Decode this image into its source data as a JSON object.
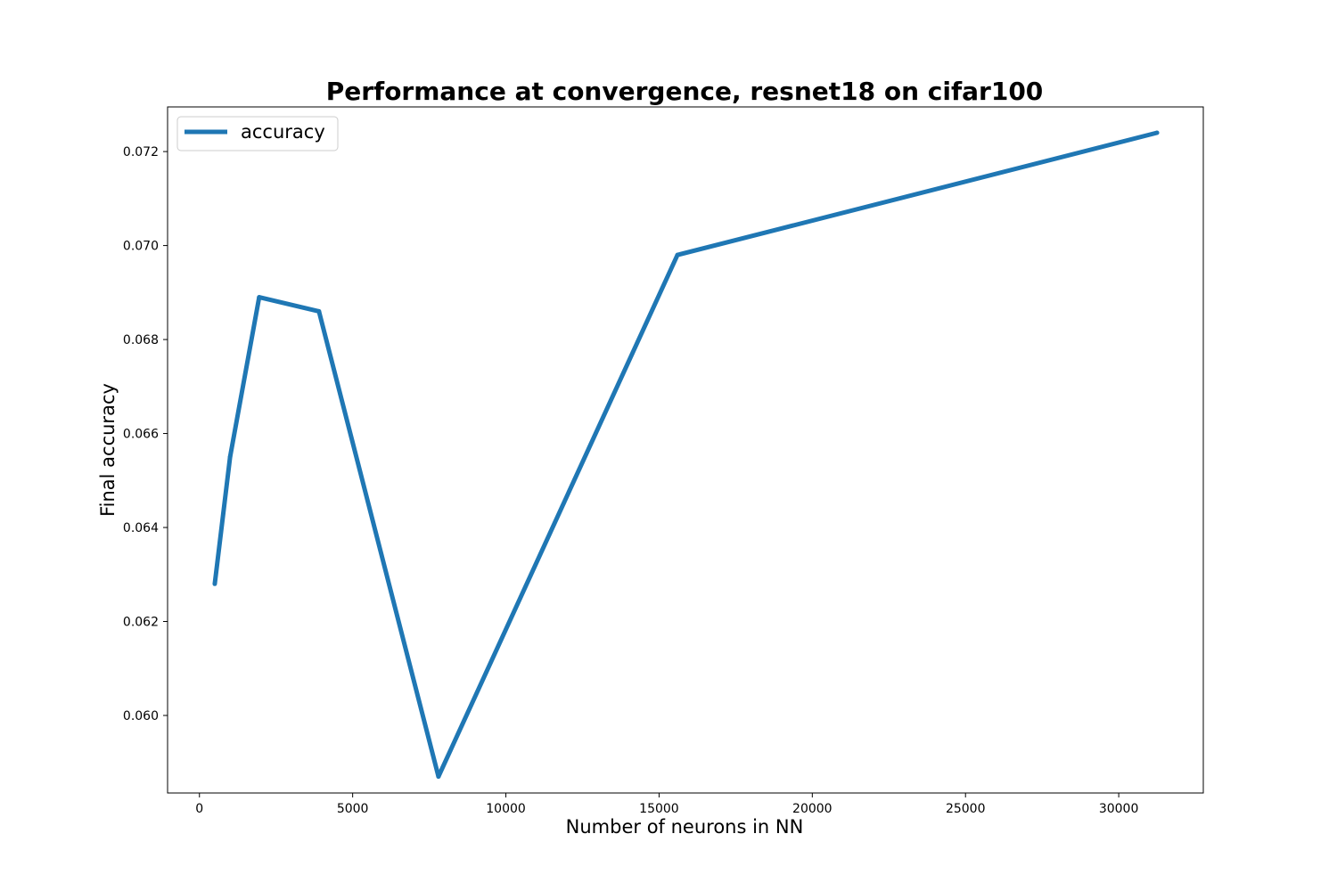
{
  "chart_data": {
    "type": "line",
    "title": "Performance at convergence, resnet18 on cifar100",
    "xlabel": "Number of neurons in NN",
    "ylabel": "Final accuracy",
    "xlim": [
      -1040,
      32760
    ],
    "ylim": [
      0.05835,
      0.07295
    ],
    "xticks": [
      0,
      5000,
      10000,
      15000,
      20000,
      25000,
      30000
    ],
    "xtick_labels": [
      "0",
      "5000",
      "10000",
      "15000",
      "20000",
      "25000",
      "30000"
    ],
    "yticks": [
      0.06,
      0.062,
      0.064,
      0.066,
      0.068,
      0.07,
      0.072
    ],
    "ytick_labels": [
      "0.060",
      "0.062",
      "0.064",
      "0.066",
      "0.068",
      "0.070",
      "0.072"
    ],
    "grid": false,
    "legend_position": "top-left",
    "color": "#1f77b4",
    "series": [
      {
        "name": "accuracy",
        "x": [
          500,
          1000,
          1950,
          3900,
          7800,
          15600,
          31250
        ],
        "y": [
          0.0628,
          0.0655,
          0.0689,
          0.0686,
          0.0587,
          0.0698,
          0.0724
        ]
      }
    ]
  }
}
